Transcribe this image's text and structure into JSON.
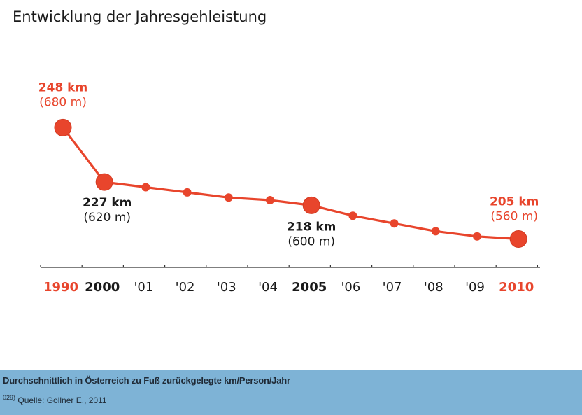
{
  "title": "Entwicklung der Jahresgehleistung",
  "footer": {
    "caption": "Durchschnittlich in Österreich zu Fuß zurückgelegte km/Person/Jahr",
    "source_ref": "029)",
    "source": "Quelle: Gollner E., 2011"
  },
  "colors": {
    "accent": "#e8452c",
    "text_dark": "#1a1a1a",
    "footer_bg": "#7eb3d6"
  },
  "chart_data": {
    "type": "line",
    "title": "Entwicklung der Jahresgehleistung",
    "xlabel": "",
    "ylabel": "",
    "categories": [
      "1990",
      "2000",
      "'01",
      "'02",
      "'03",
      "'04",
      "2005",
      "'06",
      "'07",
      "'08",
      "'09",
      "2010"
    ],
    "category_emphasis": [
      "accent",
      "bold",
      "normal",
      "normal",
      "normal",
      "normal",
      "bold",
      "normal",
      "normal",
      "normal",
      "normal",
      "accent"
    ],
    "series": [
      {
        "values": [
          248,
          227,
          225,
          223,
          221,
          220,
          218,
          214,
          211,
          208,
          206,
          205
        ]
      }
    ],
    "highlighted_points": [
      0,
      1,
      6,
      11
    ],
    "annotations": [
      {
        "index": 0,
        "line1": "248 km",
        "line2": "(680 m)",
        "color": "accent"
      },
      {
        "index": 1,
        "line1": "227 km",
        "line2": "(620 m)",
        "color": "dark"
      },
      {
        "index": 6,
        "line1": "218 km",
        "line2": "(600 m)",
        "color": "dark"
      },
      {
        "index": 11,
        "line1": "205 km",
        "line2": "(560 m)",
        "color": "accent"
      }
    ],
    "ylim": [
      200,
      250
    ],
    "grid": false,
    "legend": "none"
  }
}
